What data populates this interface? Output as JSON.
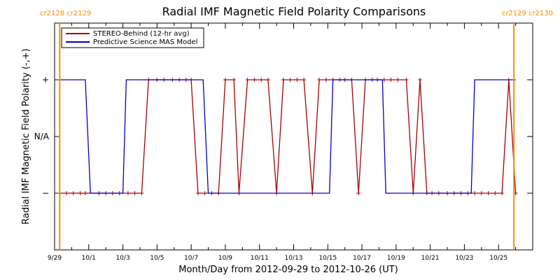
{
  "chart_data": {
    "type": "line",
    "title": "Radial IMF Magnetic Field Polarity Comparisons",
    "xlabel": "Month/Day from 2012-09-29 to 2012-10-26 (UT)",
    "ylabel": "Radial IMF Magnetic Field Polarity (-,+)",
    "xlim": [
      0,
      28
    ],
    "ylim": [
      -2,
      2
    ],
    "yticks": [
      {
        "value": 1,
        "label": "+"
      },
      {
        "value": 0,
        "label": "N/A"
      },
      {
        "value": -1,
        "label": "−"
      }
    ],
    "xticks": [
      {
        "value": 0,
        "label": "9/29"
      },
      {
        "value": 2,
        "label": "10/1"
      },
      {
        "value": 4,
        "label": "10/3"
      },
      {
        "value": 6,
        "label": "10/5"
      },
      {
        "value": 8,
        "label": "10/7"
      },
      {
        "value": 10,
        "label": "10/9"
      },
      {
        "value": 12,
        "label": "10/11"
      },
      {
        "value": 14,
        "label": "10/13"
      },
      {
        "value": 16,
        "label": "10/15"
      },
      {
        "value": 18,
        "label": "10/17"
      },
      {
        "value": 20,
        "label": "10/19"
      },
      {
        "value": 22,
        "label": "10/21"
      },
      {
        "value": 24,
        "label": "10/23"
      },
      {
        "value": 26,
        "label": "10/25"
      }
    ],
    "legend": {
      "placement": "top-left"
    },
    "series": [
      {
        "name": "STEREO-Behind (12-hr avg)",
        "color": "#aa0000",
        "markers": true,
        "x": [
          0.3,
          0.7,
          1.1,
          1.5,
          1.8,
          2.6,
          3.0,
          3.4,
          3.8,
          4.3,
          4.7,
          5.1,
          5.5,
          6.0,
          6.4,
          6.9,
          7.3,
          7.7,
          8.0,
          8.4,
          8.8,
          9.2,
          9.6,
          10.0,
          10.5,
          10.8,
          11.3,
          11.7,
          12.1,
          12.5,
          13.0,
          13.4,
          13.8,
          14.2,
          14.6,
          15.1,
          15.5,
          15.9,
          16.3,
          16.7,
          17.0,
          17.4,
          17.8,
          18.2,
          18.6,
          18.9,
          19.3,
          19.7,
          20.1,
          20.6,
          21.0,
          21.4,
          21.8,
          22.1,
          22.5,
          23.0,
          23.4,
          23.8,
          24.2,
          24.6,
          25.0,
          25.4,
          25.8,
          26.2,
          26.6,
          27.0
        ],
        "y": [
          -1,
          -1,
          -1,
          -1,
          -1,
          -1,
          -1,
          -1,
          -1,
          -1,
          -1,
          -1,
          1,
          1,
          1,
          1,
          1,
          1,
          1,
          -1,
          -1,
          -1,
          -1,
          1,
          1,
          -1,
          1,
          1,
          1,
          1,
          -1,
          1,
          1,
          1,
          1,
          -1,
          1,
          1,
          1,
          1,
          1,
          1,
          -1,
          1,
          1,
          1,
          1,
          1,
          1,
          1,
          -1,
          1,
          -1,
          -1,
          -1,
          -1,
          -1,
          -1,
          -1,
          -1,
          -1,
          -1,
          -1,
          -1,
          1,
          -1
        ]
      },
      {
        "name": "Predictive Science MAS Model",
        "color": "#0000cc",
        "markers": false,
        "x": [
          0.3,
          1.8,
          2.1,
          4.0,
          4.2,
          8.7,
          9.0,
          16.1,
          16.3,
          19.2,
          19.4,
          24.4,
          24.6,
          27.0
        ],
        "y": [
          1,
          1,
          -1,
          -1,
          1,
          1,
          -1,
          -1,
          1,
          1,
          -1,
          -1,
          1,
          1
        ]
      }
    ],
    "carrington_markers": [
      {
        "x": 0.3,
        "label": "cr2128 cr2129",
        "color": "#ff8c00",
        "side": "left"
      },
      {
        "x": 26.9,
        "label": "cr2129 cr2130",
        "color": "#ff8c00",
        "side": "right"
      }
    ]
  }
}
